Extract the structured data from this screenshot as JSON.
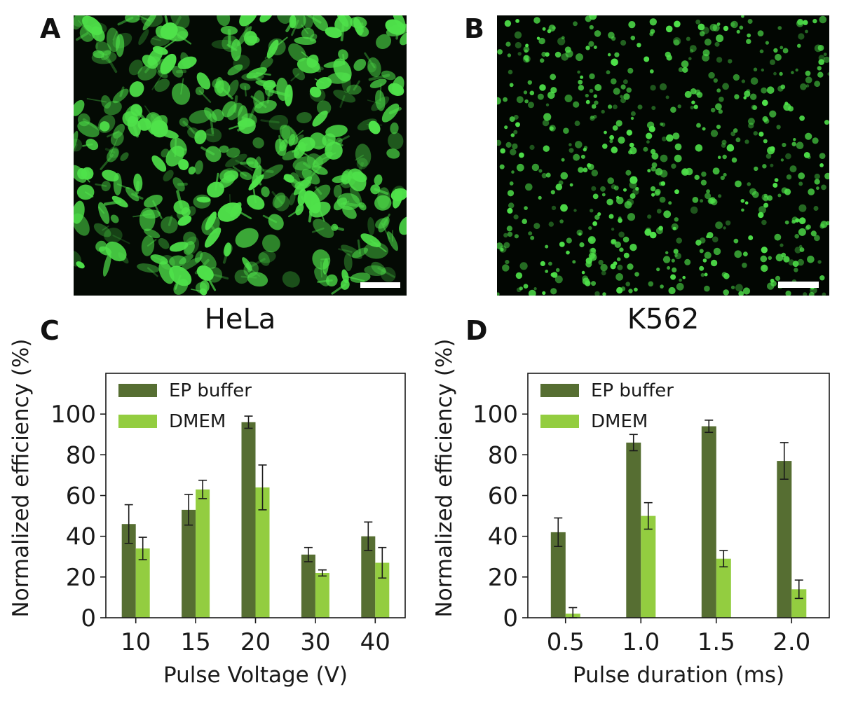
{
  "panels": {
    "a": {
      "letter": "A",
      "caption": "HeLa"
    },
    "b": {
      "letter": "B",
      "caption": "K562"
    },
    "c": {
      "letter": "C"
    },
    "d": {
      "letter": "D"
    }
  },
  "colors": {
    "ep_buffer": "#566e32",
    "dmem": "#93cd40",
    "cell_green": "#4fe24a",
    "scale_bar": "#ffffff"
  },
  "chart_data": [
    {
      "type": "bar",
      "panel": "C",
      "categories": [
        "10",
        "15",
        "20",
        "30",
        "40"
      ],
      "xlabel": "Pulse Voltage (V)",
      "ylabel": "Normalized efficiency (%)",
      "ylim": [
        0,
        120
      ],
      "yticks": [
        0,
        20,
        40,
        60,
        80,
        100
      ],
      "legend_position": "top-left",
      "grid": false,
      "series": [
        {
          "name": "EP buffer",
          "values": [
            46,
            53,
            96,
            31,
            40
          ],
          "errors": [
            9.5,
            7.5,
            3.0,
            3.5,
            7.0
          ]
        },
        {
          "name": "DMEM",
          "values": [
            34,
            63,
            64,
            22,
            27
          ],
          "errors": [
            5.5,
            4.5,
            11.0,
            1.5,
            7.5
          ]
        }
      ]
    },
    {
      "type": "bar",
      "panel": "D",
      "categories": [
        "0.5",
        "1.0",
        "1.5",
        "2.0"
      ],
      "xlabel": "Pulse duration (ms)",
      "ylabel": "Normalized efficiency (%)",
      "ylim": [
        0,
        120
      ],
      "yticks": [
        0,
        20,
        40,
        60,
        80,
        100
      ],
      "legend_position": "top-left",
      "grid": false,
      "series": [
        {
          "name": "EP buffer",
          "values": [
            42,
            86,
            94,
            77
          ],
          "errors": [
            7.0,
            4.0,
            3.0,
            9.0
          ]
        },
        {
          "name": "DMEM",
          "values": [
            2,
            50,
            29,
            14
          ],
          "errors": [
            3.0,
            6.5,
            4.0,
            4.5
          ]
        }
      ]
    }
  ]
}
